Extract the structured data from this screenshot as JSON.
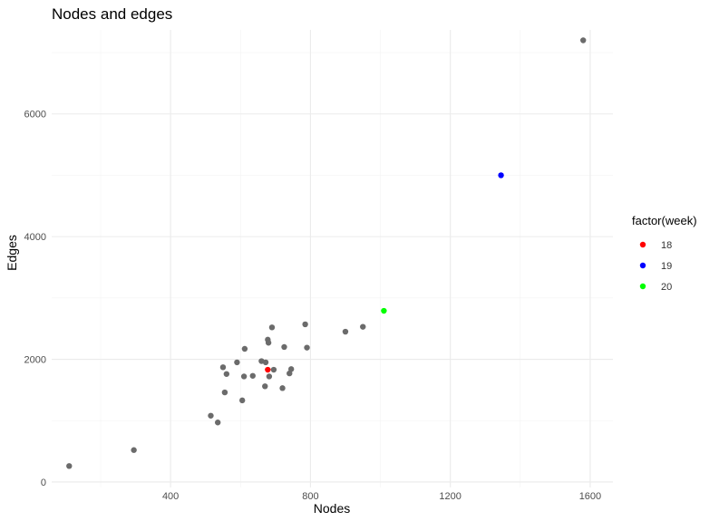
{
  "chart_data": {
    "type": "scatter",
    "title": "Nodes and edges",
    "xlabel": "Nodes",
    "ylabel": "Edges",
    "xlim": [
      60,
      1665
    ],
    "ylim": [
      -90,
      7370
    ],
    "x_ticks": [
      400,
      800,
      1200,
      1600
    ],
    "y_ticks": [
      0,
      2000,
      4000,
      6000
    ],
    "grid": true,
    "legend": {
      "title": "factor(week)",
      "position": "right",
      "entries": [
        {
          "label": "18",
          "color": "#ff0000"
        },
        {
          "label": "19",
          "color": "#0000ff"
        },
        {
          "label": "20",
          "color": "#00ff00"
        }
      ]
    },
    "default_color": "#6b6b6b",
    "points": [
      {
        "x": 110,
        "y": 260
      },
      {
        "x": 295,
        "y": 520
      },
      {
        "x": 515,
        "y": 1080
      },
      {
        "x": 535,
        "y": 970
      },
      {
        "x": 550,
        "y": 1870
      },
      {
        "x": 555,
        "y": 1460
      },
      {
        "x": 560,
        "y": 1760
      },
      {
        "x": 590,
        "y": 1950
      },
      {
        "x": 605,
        "y": 1330
      },
      {
        "x": 610,
        "y": 1720
      },
      {
        "x": 612,
        "y": 2170
      },
      {
        "x": 635,
        "y": 1730
      },
      {
        "x": 660,
        "y": 1970
      },
      {
        "x": 670,
        "y": 1560
      },
      {
        "x": 672,
        "y": 1950
      },
      {
        "x": 678,
        "y": 2320
      },
      {
        "x": 680,
        "y": 2270
      },
      {
        "x": 682,
        "y": 1720
      },
      {
        "x": 690,
        "y": 2520
      },
      {
        "x": 695,
        "y": 1830
      },
      {
        "x": 720,
        "y": 1530
      },
      {
        "x": 725,
        "y": 2200
      },
      {
        "x": 740,
        "y": 1770
      },
      {
        "x": 745,
        "y": 1840
      },
      {
        "x": 785,
        "y": 2570
      },
      {
        "x": 790,
        "y": 2190
      },
      {
        "x": 900,
        "y": 2450
      },
      {
        "x": 950,
        "y": 2530
      },
      {
        "x": 1580,
        "y": 7200
      },
      {
        "x": 678,
        "y": 1830,
        "week": "18"
      },
      {
        "x": 1345,
        "y": 5000,
        "week": "19"
      },
      {
        "x": 1010,
        "y": 2790,
        "week": "20"
      }
    ]
  }
}
